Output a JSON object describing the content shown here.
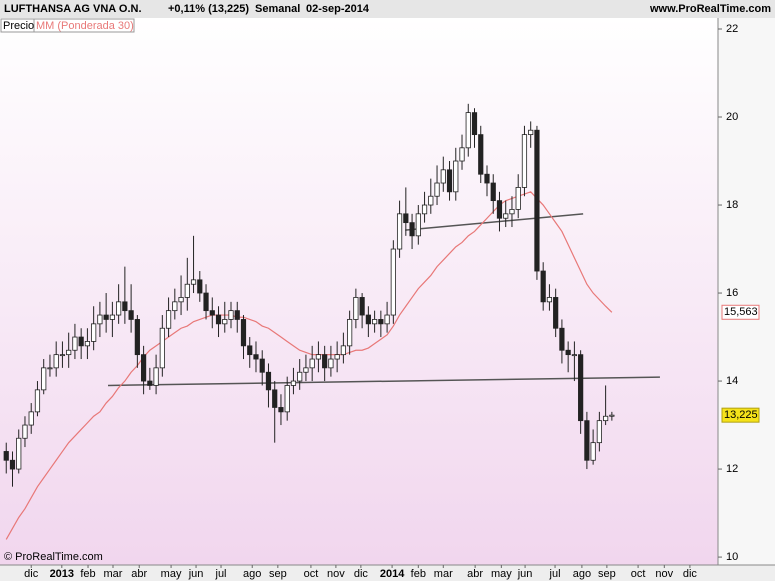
{
  "chart_data": {
    "type": "candlestick",
    "title": "LUFTHANSA AG VNA O.N.",
    "change": "+0,11% (13,225)",
    "period": "Semanal",
    "date": "02-sep-2014",
    "source": "www.ProRealTime.com",
    "copyright": "© ProRealTime.com",
    "price": {
      "name": "Precio",
      "up_color": "#ffffff",
      "down_color": "#222222",
      "open": [
        12.4,
        12.2,
        12.0,
        12.7,
        13.0,
        13.3,
        13.8,
        14.3,
        14.3,
        14.6,
        14.6,
        14.7,
        15.0,
        14.8,
        14.9,
        15.3,
        15.5,
        15.4,
        15.5,
        15.8,
        15.6,
        15.4,
        14.6,
        14.0,
        13.9,
        14.3,
        15.2,
        15.6,
        15.8,
        15.9,
        16.2,
        16.3,
        16.0,
        15.6,
        15.5,
        15.3,
        15.4,
        15.6,
        15.4,
        14.8,
        14.6,
        14.5,
        14.2,
        13.8,
        13.4,
        13.3,
        13.9,
        14.0,
        14.2,
        14.3,
        14.5,
        14.6,
        14.3,
        14.5,
        14.6,
        14.8,
        15.4,
        15.9,
        15.5,
        15.3,
        15.4,
        15.3,
        15.5,
        17.0,
        17.8,
        17.6,
        17.3,
        17.8,
        18.0,
        18.2,
        18.5,
        18.8,
        18.3,
        19.0,
        19.3,
        20.1,
        19.6,
        18.7,
        18.5,
        18.1,
        17.7,
        17.8,
        17.9,
        18.4,
        19.6,
        19.7,
        16.5,
        15.8,
        15.9,
        15.2,
        14.7,
        14.6,
        14.6,
        13.1,
        12.2,
        12.6,
        13.1,
        13.2
      ],
      "high": [
        12.6,
        12.4,
        12.9,
        13.2,
        13.5,
        14.0,
        14.5,
        14.6,
        14.9,
        14.9,
        15.1,
        15.3,
        15.2,
        15.2,
        15.7,
        15.8,
        16.0,
        15.8,
        16.2,
        16.6,
        16.2,
        15.5,
        14.8,
        14.3,
        14.6,
        15.5,
        15.9,
        16.1,
        16.4,
        16.8,
        17.3,
        16.5,
        16.2,
        15.9,
        15.7,
        15.8,
        15.8,
        15.8,
        15.5,
        15.0,
        14.9,
        14.7,
        14.4,
        14.0,
        13.7,
        14.1,
        14.3,
        14.5,
        14.6,
        14.8,
        14.9,
        14.8,
        14.8,
        14.9,
        15.1,
        15.6,
        16.1,
        16.0,
        15.7,
        15.6,
        15.6,
        15.8,
        17.2,
        18.1,
        18.4,
        17.8,
        18.0,
        18.3,
        18.6,
        18.9,
        19.1,
        19.0,
        19.3,
        19.6,
        20.3,
        20.2,
        19.8,
        18.9,
        18.7,
        18.3,
        18.1,
        18.2,
        18.7,
        19.8,
        19.9,
        19.8,
        16.7,
        16.2,
        16.1,
        15.4,
        14.9,
        14.9,
        14.7,
        13.3,
        12.9,
        13.3,
        13.9,
        13.3
      ],
      "low": [
        11.9,
        11.6,
        11.9,
        12.5,
        12.8,
        13.2,
        13.7,
        14.1,
        14.1,
        14.3,
        14.3,
        14.5,
        14.5,
        14.5,
        14.7,
        15.0,
        15.1,
        15.0,
        15.3,
        15.3,
        15.1,
        14.3,
        13.7,
        13.8,
        13.7,
        14.1,
        15.0,
        15.4,
        15.5,
        15.6,
        16.0,
        15.8,
        15.4,
        15.2,
        15.0,
        15.1,
        15.2,
        15.1,
        14.5,
        14.3,
        14.2,
        13.9,
        13.4,
        12.6,
        13.0,
        13.1,
        13.7,
        13.8,
        14.0,
        14.0,
        14.2,
        14.0,
        14.1,
        14.2,
        14.4,
        14.6,
        15.2,
        15.2,
        15.0,
        15.1,
        15.0,
        15.1,
        15.3,
        16.8,
        17.3,
        17.0,
        17.1,
        17.6,
        17.8,
        18.0,
        18.3,
        18.1,
        18.1,
        18.8,
        19.1,
        19.3,
        18.5,
        18.2,
        17.8,
        17.4,
        17.5,
        17.5,
        17.7,
        18.2,
        19.3,
        16.3,
        15.6,
        15.6,
        15.0,
        14.4,
        14.2,
        14.0,
        12.8,
        12.0,
        12.1,
        12.4,
        13.0,
        13.1
      ],
      "close": [
        12.2,
        12.0,
        12.7,
        13.0,
        13.3,
        13.8,
        14.3,
        14.3,
        14.6,
        14.6,
        14.7,
        15.0,
        14.8,
        14.9,
        15.3,
        15.5,
        15.4,
        15.5,
        15.8,
        15.6,
        15.4,
        14.6,
        14.0,
        13.9,
        14.3,
        15.2,
        15.6,
        15.8,
        15.9,
        16.2,
        16.3,
        16.0,
        15.6,
        15.5,
        15.3,
        15.4,
        15.6,
        15.4,
        14.8,
        14.6,
        14.5,
        14.2,
        13.8,
        13.4,
        13.3,
        13.9,
        14.0,
        14.2,
        14.3,
        14.5,
        14.6,
        14.3,
        14.5,
        14.6,
        14.8,
        15.4,
        15.9,
        15.5,
        15.3,
        15.4,
        15.3,
        15.5,
        17.0,
        17.8,
        17.6,
        17.3,
        17.8,
        18.0,
        18.2,
        18.5,
        18.8,
        18.3,
        19.0,
        19.3,
        20.1,
        19.6,
        18.7,
        18.5,
        18.1,
        17.7,
        17.8,
        17.9,
        18.4,
        19.6,
        19.7,
        16.5,
        15.8,
        15.9,
        15.2,
        14.7,
        14.6,
        14.6,
        13.1,
        12.2,
        12.6,
        13.1,
        13.2,
        13.225
      ],
      "last": {
        "value": 13.225,
        "label": "13,225"
      }
    },
    "ma": {
      "name": "MM (Ponderada 30)",
      "color": "#e87878",
      "values": [
        10.4,
        10.65,
        10.9,
        11.1,
        11.35,
        11.6,
        11.8,
        12.0,
        12.2,
        12.4,
        12.6,
        12.75,
        12.9,
        13.05,
        13.2,
        13.3,
        13.5,
        13.65,
        13.85,
        14.0,
        14.2,
        14.35,
        14.55,
        14.7,
        14.8,
        14.9,
        15.0,
        15.1,
        15.2,
        15.25,
        15.35,
        15.4,
        15.45,
        15.5,
        15.5,
        15.5,
        15.5,
        15.45,
        15.45,
        15.4,
        15.35,
        15.25,
        15.2,
        15.1,
        15.0,
        14.9,
        14.8,
        14.7,
        14.65,
        14.6,
        14.6,
        14.6,
        14.6,
        14.6,
        14.6,
        14.65,
        14.7,
        14.7,
        14.75,
        14.85,
        14.95,
        15.05,
        15.25,
        15.5,
        15.7,
        15.9,
        16.1,
        16.25,
        16.4,
        16.6,
        16.75,
        16.9,
        17.05,
        17.15,
        17.3,
        17.4,
        17.55,
        17.7,
        17.85,
        18.0,
        18.1,
        18.15,
        18.2,
        18.25,
        18.3,
        18.15,
        18.0,
        17.8,
        17.6,
        17.4,
        17.1,
        16.8,
        16.5,
        16.2,
        16.0,
        15.85,
        15.7,
        15.563
      ],
      "last": {
        "value": 15.563,
        "label": "15,563"
      }
    },
    "trendlines": [
      {
        "x": [
          16.3,
          104.7
        ],
        "y": [
          13.9,
          14.09
        ]
      },
      {
        "x": [
          63.9,
          92.4
        ],
        "y": [
          17.43,
          17.8
        ]
      }
    ],
    "xlim": [
      -1,
      114
    ],
    "xticks": [
      {
        "value": 4.0,
        "label": "dic"
      },
      {
        "value": 8.9,
        "label": "2013"
      },
      {
        "value": 13.1,
        "label": "feb"
      },
      {
        "value": 17.1,
        "label": "mar"
      },
      {
        "value": 21.3,
        "label": "abr"
      },
      {
        "value": 26.4,
        "label": "may"
      },
      {
        "value": 30.4,
        "label": "jun"
      },
      {
        "value": 34.4,
        "label": "jul"
      },
      {
        "value": 39.4,
        "label": "ago"
      },
      {
        "value": 43.5,
        "label": "sep"
      },
      {
        "value": 48.8,
        "label": "oct"
      },
      {
        "value": 52.8,
        "label": "nov"
      },
      {
        "value": 56.8,
        "label": "dic"
      },
      {
        "value": 61.8,
        "label": "2014"
      },
      {
        "value": 66.0,
        "label": "feb"
      },
      {
        "value": 70.0,
        "label": "mar"
      },
      {
        "value": 75.1,
        "label": "abr"
      },
      {
        "value": 79.3,
        "label": "may"
      },
      {
        "value": 83.1,
        "label": "jun"
      },
      {
        "value": 87.9,
        "label": "jul"
      },
      {
        "value": 92.2,
        "label": "ago"
      },
      {
        "value": 96.2,
        "label": "sep"
      },
      {
        "value": 101.2,
        "label": "oct"
      },
      {
        "value": 105.4,
        "label": "nov"
      },
      {
        "value": 109.5,
        "label": "dic"
      }
    ],
    "ylim": [
      9.82,
      22.25
    ],
    "yticks": [
      10,
      12,
      14,
      16,
      18,
      20,
      22
    ]
  }
}
